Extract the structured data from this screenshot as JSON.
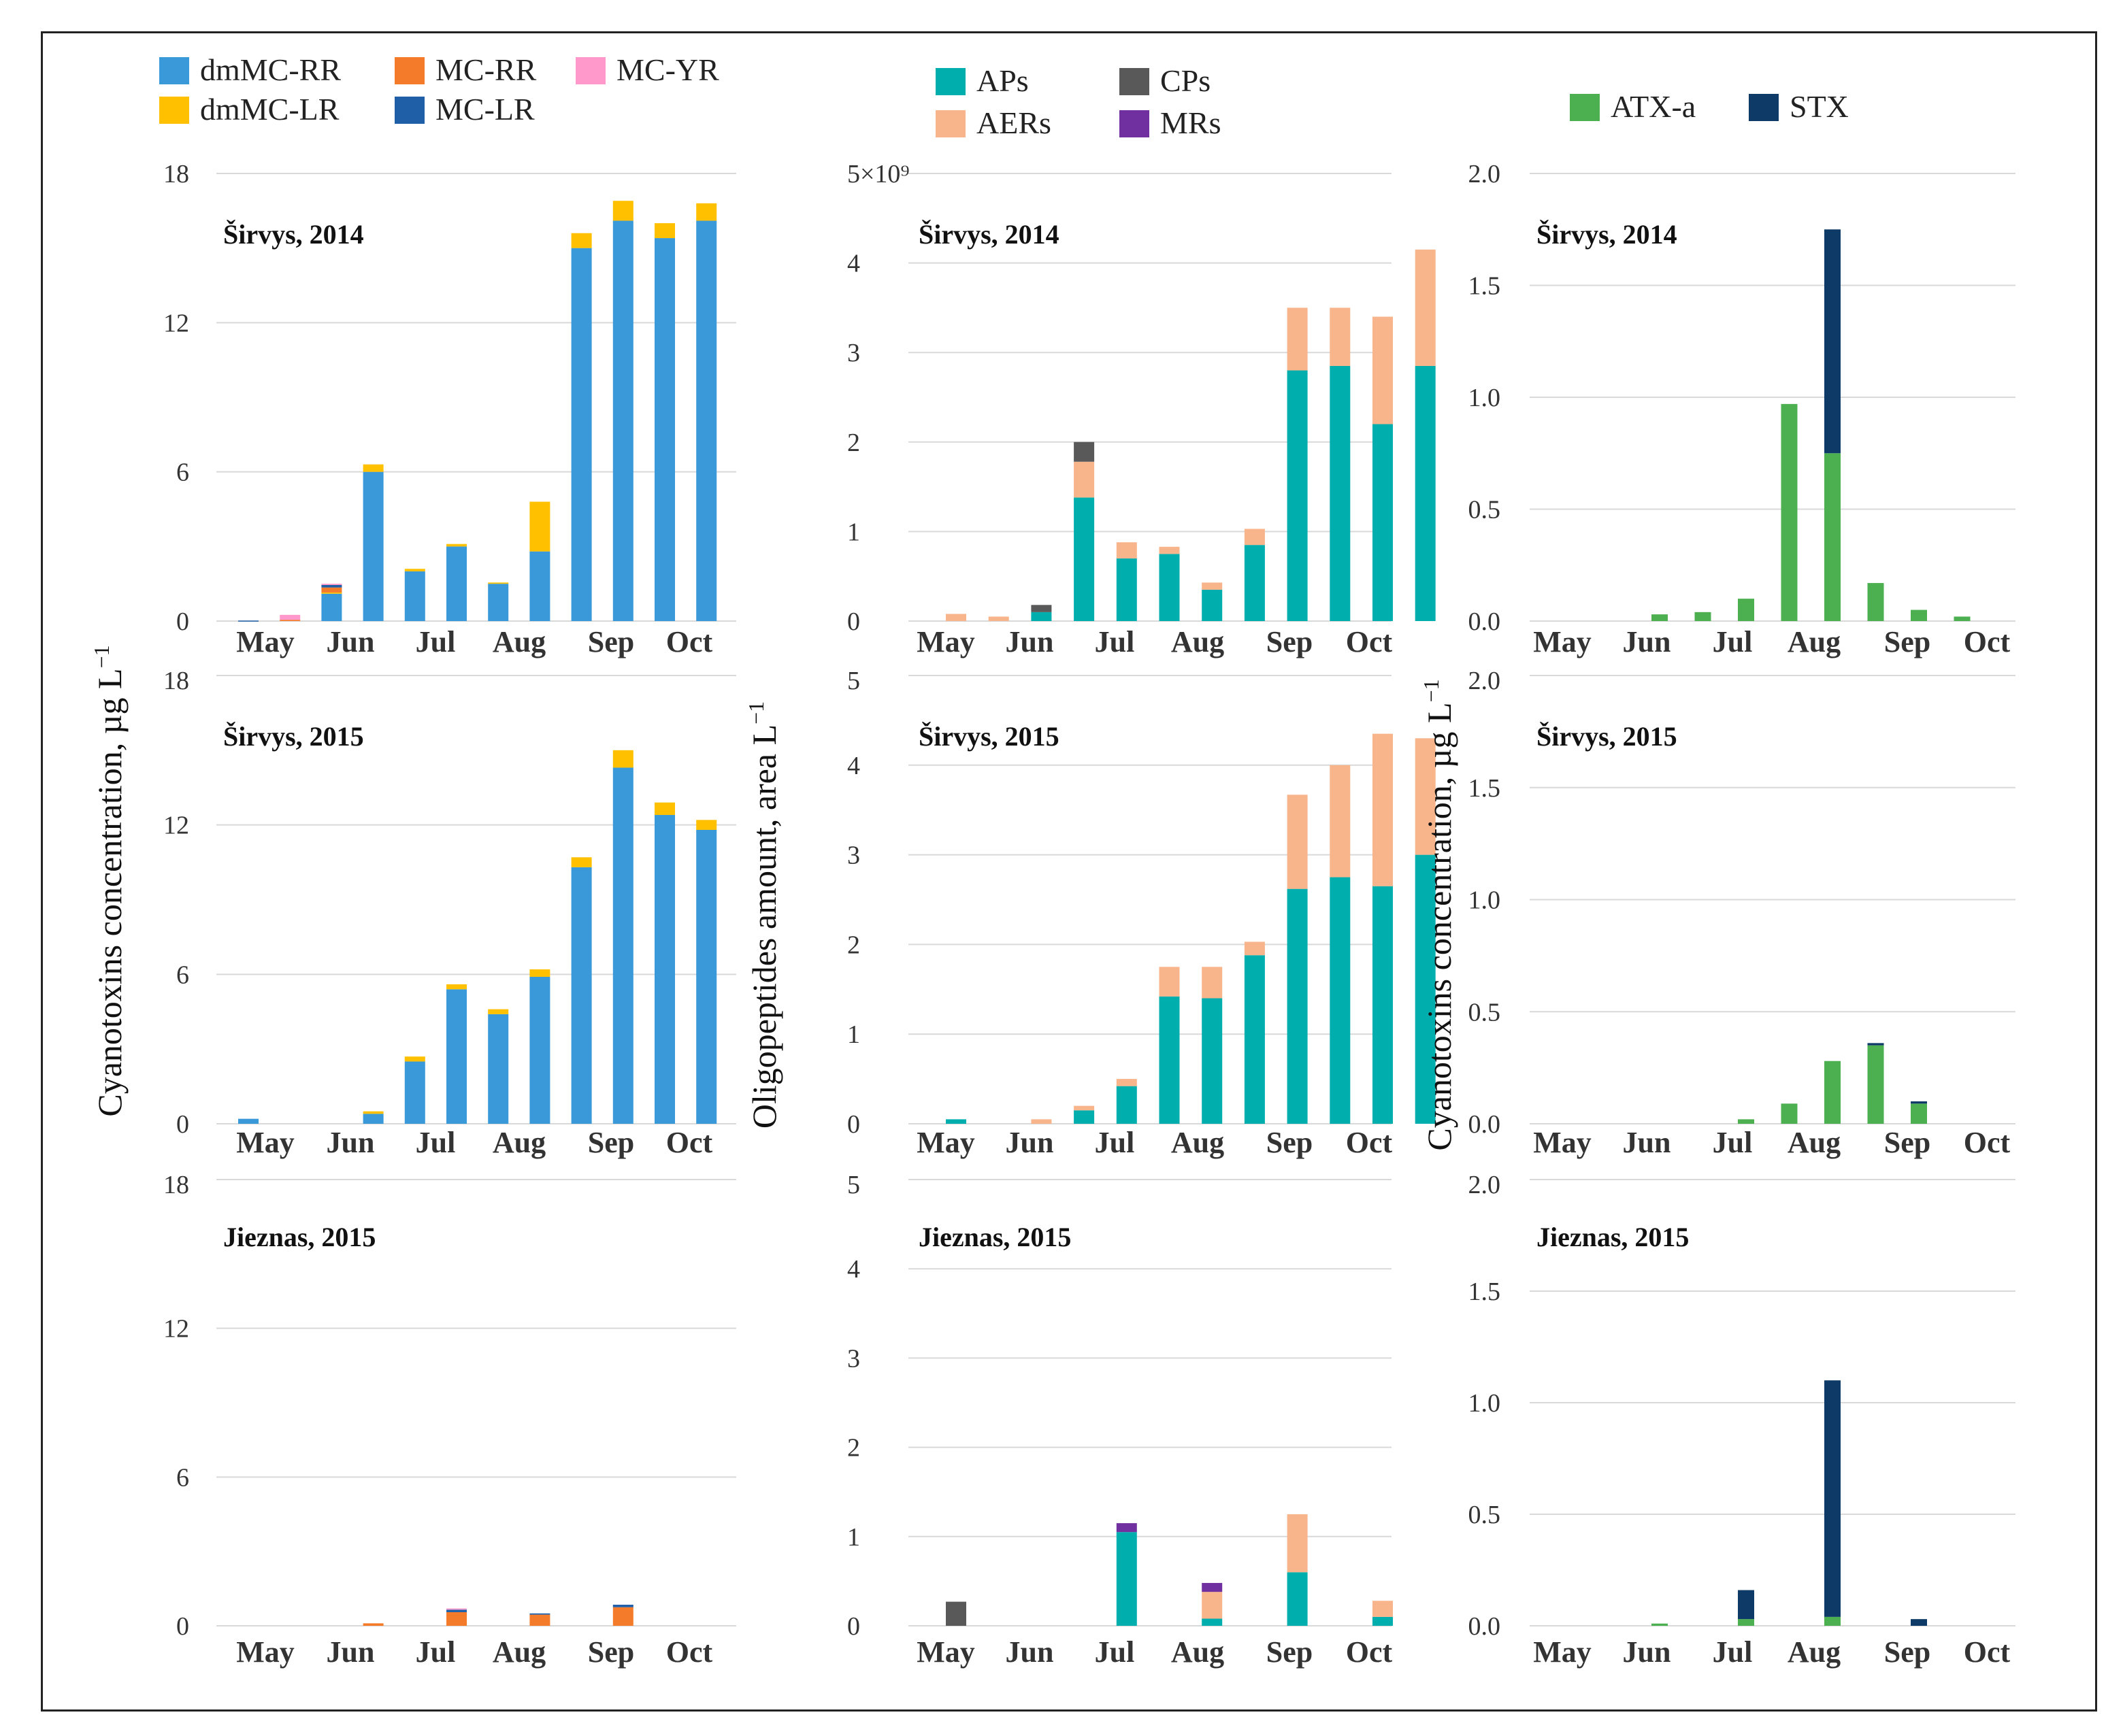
{
  "y_axis_labels": {
    "left": "Cyanotoxins concentration, µg L",
    "left_sup": "−1",
    "middle": "Oligopeptides amount, area L",
    "middle_sup": "−1",
    "right": "Cyanotoxins concentration, µg L",
    "right_sup": "−1"
  },
  "scale_note": "5×10⁹",
  "colors": {
    "dmMC-RR": "#3a9ad9",
    "dmMC-LR": "#ffc000",
    "MC-RR": "#f47b2a",
    "MC-LR": "#1f5fa8",
    "MC-YR": "#ff99cc",
    "APs": "#00aeae",
    "AERs": "#f8b48a",
    "CPs": "#595959",
    "MRs": "#7030a0",
    "ATX-a": "#4caf50",
    "STX": "#0d3a66"
  },
  "chart_data": [
    {
      "type": "bar",
      "stacked": true,
      "legend": [
        "dmMC-RR",
        "MC-RR",
        "MC-YR",
        "dmMC-LR",
        "MC-LR"
      ],
      "panels": [
        {
          "title": "Širvys, 2014",
          "ylim": [
            0,
            18
          ],
          "yticks": [
            "0",
            "6",
            "12",
            "18"
          ],
          "xticks": [
            "May",
            "Jun",
            "Jul",
            "Aug",
            "Sep",
            "Oct"
          ],
          "series": [
            {
              "name": "dmMC-RR",
              "values": [
                0,
                0,
                1.1,
                6.0,
                2.0,
                3.0,
                1.5,
                2.8,
                15.0,
                16.1,
                15.4,
                16.1
              ]
            },
            {
              "name": "dmMC-LR",
              "values": [
                0,
                0,
                0.05,
                0.3,
                0.1,
                0.1,
                0.05,
                2.0,
                0.6,
                0.8,
                0.6,
                0.7
              ]
            },
            {
              "name": "MC-RR",
              "values": [
                0,
                0.05,
                0.2,
                0,
                0,
                0,
                0,
                0,
                0,
                0,
                0,
                0
              ]
            },
            {
              "name": "MC-LR",
              "values": [
                0.02,
                0,
                0.1,
                0,
                0,
                0,
                0,
                0,
                0,
                0,
                0,
                0
              ]
            },
            {
              "name": "MC-YR",
              "values": [
                0,
                0.2,
                0.05,
                0,
                0,
                0,
                0,
                0,
                0,
                0,
                0,
                0
              ]
            }
          ]
        },
        {
          "title": "Širvys, 2015",
          "ylim": [
            0,
            18
          ],
          "yticks": [
            "0",
            "6",
            "12",
            "18"
          ],
          "xticks": [
            "May",
            "Jun",
            "Jul",
            "Aug",
            "Sep",
            "Oct"
          ],
          "series": [
            {
              "name": "dmMC-RR",
              "values": [
                0.2,
                0,
                0,
                0.4,
                2.5,
                5.4,
                4.4,
                5.9,
                10.3,
                14.3,
                12.4,
                11.8
              ]
            },
            {
              "name": "dmMC-LR",
              "values": [
                0,
                0,
                0,
                0.1,
                0.2,
                0.2,
                0.2,
                0.3,
                0.4,
                0.7,
                0.5,
                0.4
              ]
            },
            {
              "name": "MC-RR",
              "values": [
                0,
                0,
                0,
                0,
                0,
                0,
                0,
                0,
                0,
                0,
                0,
                0
              ]
            },
            {
              "name": "MC-LR",
              "values": [
                0,
                0,
                0,
                0,
                0,
                0,
                0,
                0,
                0,
                0,
                0,
                0
              ]
            },
            {
              "name": "MC-YR",
              "values": [
                0,
                0,
                0,
                0,
                0,
                0,
                0,
                0,
                0,
                0,
                0,
                0
              ]
            }
          ]
        },
        {
          "title": "Jieznas, 2015",
          "ylim": [
            0,
            18
          ],
          "yticks": [
            "0",
            "6",
            "12",
            "18"
          ],
          "xticks": [
            "May",
            "Jun",
            "Jul",
            "Aug",
            "Sep",
            "Oct"
          ],
          "series": [
            {
              "name": "dmMC-RR",
              "values": [
                0,
                0,
                0,
                0,
                0,
                0,
                0,
                0,
                0,
                0,
                0,
                0
              ]
            },
            {
              "name": "dmMC-LR",
              "values": [
                0,
                0,
                0,
                0,
                0,
                0,
                0,
                0,
                0,
                0,
                0,
                0
              ]
            },
            {
              "name": "MC-RR",
              "values": [
                0,
                0,
                0,
                0.1,
                0,
                0.55,
                0,
                0.45,
                0,
                0.75,
                0,
                0
              ]
            },
            {
              "name": "MC-LR",
              "values": [
                0,
                0,
                0,
                0,
                0,
                0.1,
                0,
                0.05,
                0,
                0.1,
                0,
                0
              ]
            },
            {
              "name": "MC-YR",
              "values": [
                0,
                0,
                0,
                0,
                0,
                0.05,
                0,
                0,
                0,
                0,
                0,
                0
              ]
            }
          ]
        }
      ]
    },
    {
      "type": "bar",
      "stacked": true,
      "legend": [
        "APs",
        "CPs",
        "AERs",
        "MRs"
      ],
      "panels": [
        {
          "title": "Širvys, 2014",
          "ylim": [
            0,
            5
          ],
          "yticks": [
            "0",
            "1",
            "2",
            "3",
            "4",
            "5×10⁹"
          ],
          "xticks": [
            "May",
            "Jun",
            "Jul",
            "Aug",
            "Sep",
            "Oct"
          ],
          "series": [
            {
              "name": "APs",
              "values": [
                0,
                0,
                0.1,
                1.38,
                0.7,
                0.75,
                0.35,
                0.85,
                2.8,
                2.85,
                2.2,
                2.85
              ]
            },
            {
              "name": "AERs",
              "values": [
                0.08,
                0.05,
                0,
                0.4,
                0.18,
                0.08,
                0.08,
                0.18,
                0.7,
                0.65,
                1.2,
                1.3
              ]
            },
            {
              "name": "CPs",
              "values": [
                0,
                0,
                0.08,
                0.22,
                0,
                0,
                0,
                0,
                0,
                0,
                0,
                0
              ]
            },
            {
              "name": "MRs",
              "values": [
                0,
                0,
                0,
                0,
                0,
                0,
                0,
                0,
                0,
                0,
                0,
                0
              ]
            }
          ]
        },
        {
          "title": "Širvys, 2015",
          "ylim": [
            0,
            5
          ],
          "yticks": [
            "0",
            "1",
            "2",
            "3",
            "4",
            "5"
          ],
          "xticks": [
            "May",
            "Jun",
            "Jul",
            "Aug",
            "Sep",
            "Oct"
          ],
          "series": [
            {
              "name": "APs",
              "values": [
                0.05,
                0,
                0,
                0.15,
                0.42,
                1.42,
                1.4,
                1.88,
                2.62,
                2.75,
                2.65,
                3.0
              ]
            },
            {
              "name": "AERs",
              "values": [
                0,
                0,
                0.05,
                0.05,
                0.08,
                0.33,
                0.35,
                0.15,
                1.05,
                1.25,
                1.7,
                1.3
              ]
            },
            {
              "name": "CPs",
              "values": [
                0,
                0,
                0,
                0,
                0,
                0,
                0,
                0,
                0,
                0,
                0,
                0
              ]
            },
            {
              "name": "MRs",
              "values": [
                0,
                0,
                0,
                0,
                0,
                0,
                0,
                0,
                0,
                0,
                0,
                0
              ]
            }
          ]
        },
        {
          "title": "Jieznas, 2015",
          "ylim": [
            0,
            5
          ],
          "yticks": [
            "0",
            "1",
            "2",
            "3",
            "4",
            "5"
          ],
          "xticks": [
            "May",
            "Jun",
            "Jul",
            "Aug",
            "Sep",
            "Oct"
          ],
          "series": [
            {
              "name": "APs",
              "values": [
                0,
                0,
                0,
                0,
                1.05,
                0,
                0.08,
                0,
                0.6,
                0,
                0.1,
                0
              ]
            },
            {
              "name": "AERs",
              "values": [
                0,
                0,
                0,
                0,
                0,
                0,
                0.3,
                0,
                0.65,
                0,
                0.18,
                0
              ]
            },
            {
              "name": "CPs",
              "values": [
                0.27,
                0,
                0,
                0,
                0,
                0,
                0,
                0,
                0,
                0,
                0,
                0
              ]
            },
            {
              "name": "MRs",
              "values": [
                0,
                0,
                0,
                0,
                0.1,
                0,
                0.1,
                0,
                0,
                0,
                0,
                0
              ]
            }
          ]
        }
      ]
    },
    {
      "type": "bar",
      "stacked": true,
      "legend": [
        "ATX-a",
        "STX"
      ],
      "panels": [
        {
          "title": "Širvys, 2014",
          "ylim": [
            0,
            2.0
          ],
          "yticks": [
            "0.0",
            "0.5",
            "1.0",
            "1.5",
            "2.0"
          ],
          "xticks": [
            "May",
            "Jun",
            "Jul",
            "Aug",
            "Sep",
            "Oct"
          ],
          "series": [
            {
              "name": "ATX-a",
              "values": [
                0,
                0,
                0.03,
                0.04,
                0.1,
                0.97,
                0.75,
                0.17,
                0.05,
                0.02,
                0,
                0
              ]
            },
            {
              "name": "STX",
              "values": [
                0,
                0,
                0,
                0,
                0,
                0,
                1.0,
                0,
                0,
                0,
                0,
                0
              ]
            }
          ]
        },
        {
          "title": "Širvys, 2015",
          "ylim": [
            0,
            2.0
          ],
          "yticks": [
            "0.0",
            "0.5",
            "1.0",
            "1.5",
            "2.0"
          ],
          "xticks": [
            "May",
            "Jun",
            "Jul",
            "Aug",
            "Sep",
            "Oct"
          ],
          "series": [
            {
              "name": "ATX-a",
              "values": [
                0,
                0,
                0,
                0,
                0.02,
                0.09,
                0.28,
                0.35,
                0.09,
                0,
                0,
                0
              ]
            },
            {
              "name": "STX",
              "values": [
                0,
                0,
                0,
                0,
                0,
                0,
                0,
                0.01,
                0.01,
                0,
                0,
                0
              ]
            }
          ]
        },
        {
          "title": "Jieznas, 2015",
          "ylim": [
            0,
            2.0
          ],
          "yticks": [
            "0.0",
            "0.5",
            "1.0",
            "1.5",
            "2.0"
          ],
          "xticks": [
            "May",
            "Jun",
            "Jul",
            "Aug",
            "Sep",
            "Oct"
          ],
          "series": [
            {
              "name": "ATX-a",
              "values": [
                0,
                0,
                0.01,
                0,
                0.03,
                0,
                0.04,
                0,
                0,
                0,
                0,
                0
              ]
            },
            {
              "name": "STX",
              "values": [
                0,
                0,
                0,
                0,
                0.13,
                0,
                1.06,
                0,
                0.03,
                0,
                0,
                0
              ]
            }
          ]
        }
      ]
    }
  ]
}
